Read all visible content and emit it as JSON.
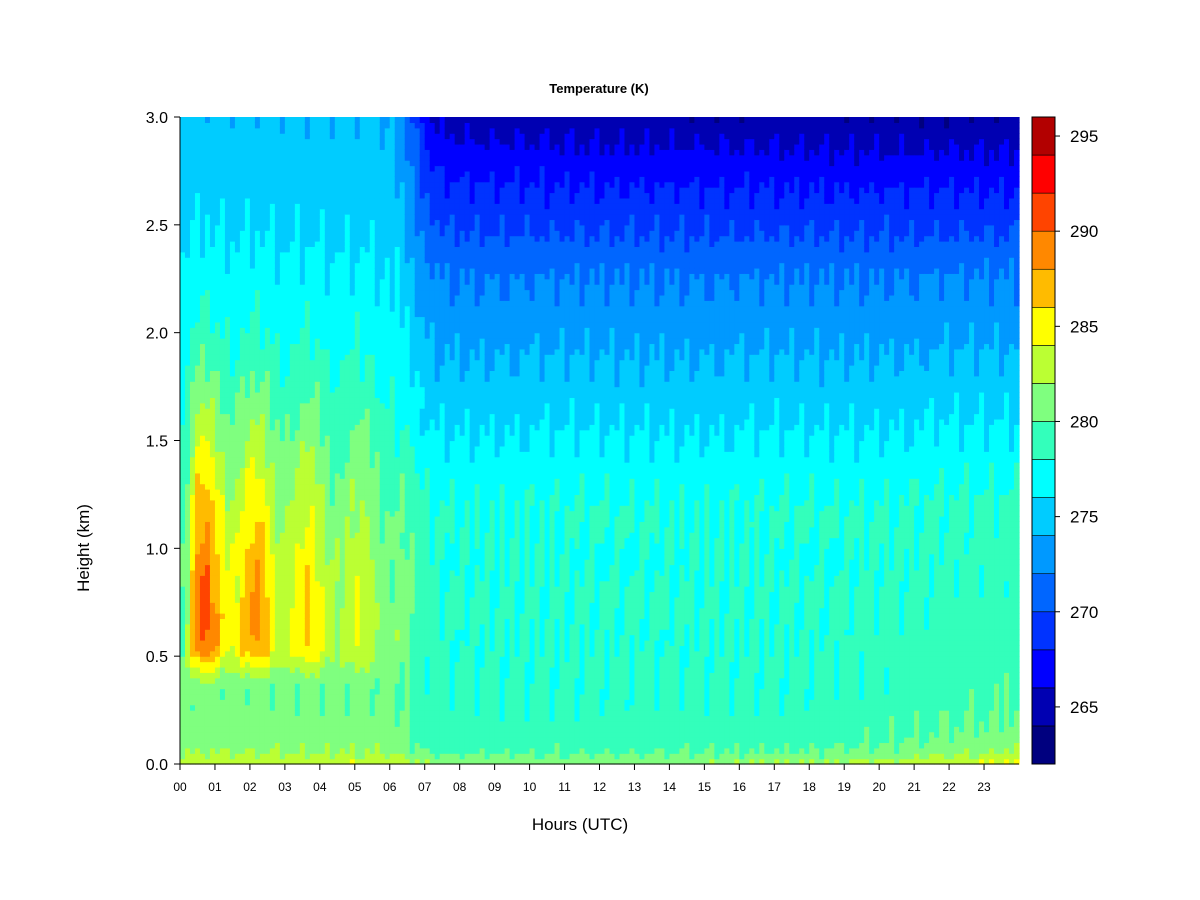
{
  "chart_data": {
    "type": "heatmap",
    "title": "Temperature (K)",
    "xlabel": "Hours (UTC)",
    "ylabel": "Height (km)",
    "xlim": [
      0,
      24
    ],
    "ylim": [
      0,
      3.0
    ],
    "x_ticks": [
      "00",
      "01",
      "02",
      "03",
      "04",
      "05",
      "06",
      "07",
      "08",
      "09",
      "10",
      "11",
      "12",
      "13",
      "14",
      "15",
      "16",
      "17",
      "18",
      "19",
      "20",
      "21",
      "22",
      "23"
    ],
    "y_ticks": [
      "0.0",
      "0.5",
      "1.0",
      "1.5",
      "2.0",
      "2.5",
      "3.0"
    ],
    "colorbar": {
      "label_ticks": [
        "265",
        "270",
        "275",
        "280",
        "285",
        "290",
        "295"
      ],
      "levels": [
        262,
        264,
        266,
        268,
        270,
        272,
        274,
        276,
        278,
        280,
        282,
        284,
        286,
        288,
        290,
        292,
        294,
        296
      ],
      "colors": [
        "#00007f",
        "#0000b2",
        "#0000ff",
        "#0033ff",
        "#0066ff",
        "#0099ff",
        "#00ccff",
        "#00ffff",
        "#33ffbb",
        "#7fff7f",
        "#bbff33",
        "#ffff00",
        "#ffbb00",
        "#ff8800",
        "#ff4400",
        "#ff0000",
        "#b20000",
        "#7f0000"
      ]
    },
    "grid": false
  }
}
